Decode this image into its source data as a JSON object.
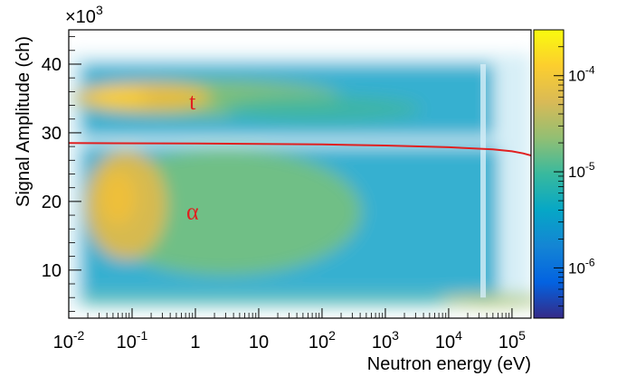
{
  "chart_data": {
    "type": "heatmap",
    "title": "",
    "xlabel": "Neutron energy (eV)",
    "ylabel": "Signal Amplitude (ch)",
    "y_multiplier_label": "×10",
    "y_multiplier_exponent": "3",
    "x_scale": "log",
    "xlim": [
      0.01,
      200000
    ],
    "ylim": [
      3000,
      45000
    ],
    "x_ticks": [
      {
        "value": 0.01,
        "base": "10",
        "exp": "-2"
      },
      {
        "value": 0.1,
        "base": "10",
        "exp": "-1"
      },
      {
        "value": 1,
        "base": "1",
        "exp": ""
      },
      {
        "value": 10,
        "base": "10",
        "exp": ""
      },
      {
        "value": 100,
        "base": "10",
        "exp": "2"
      },
      {
        "value": 1000,
        "base": "10",
        "exp": "3"
      },
      {
        "value": 10000,
        "base": "10",
        "exp": "4"
      },
      {
        "value": 100000,
        "base": "10",
        "exp": "5"
      }
    ],
    "y_ticks": [
      {
        "value": 10000,
        "label": "10"
      },
      {
        "value": 20000,
        "label": "20"
      },
      {
        "value": 30000,
        "label": "30"
      },
      {
        "value": 40000,
        "label": "40"
      }
    ],
    "colorbar": {
      "scale": "log",
      "range": [
        3e-07,
        0.0003
      ],
      "ticks": [
        {
          "value": 1e-06,
          "base": "10",
          "exp": "-6"
        },
        {
          "value": 1e-05,
          "base": "10",
          "exp": "-5"
        },
        {
          "value": 0.0001,
          "base": "10",
          "exp": "-4"
        }
      ],
      "colors": [
        "#352a87",
        "#0363e1",
        "#1485d4",
        "#06a7c6",
        "#38b99e",
        "#92bf73",
        "#d9ba56",
        "#fcce2e",
        "#f9fb0e"
      ]
    },
    "bands": [
      {
        "label": "t",
        "y_center": 35000,
        "y_halfwidth": 5000,
        "peak_x": 0.07
      },
      {
        "label": "α",
        "y_center": 19000,
        "y_halfwidth": 8500,
        "peak_x": 0.07
      },
      {
        "label": "",
        "y_center": 5700,
        "y_halfwidth": 700,
        "peak_x": 0.07
      }
    ],
    "threshold_line": {
      "color": "#e02020",
      "points": [
        [
          0.01,
          28500
        ],
        [
          1,
          28450
        ],
        [
          100,
          28300
        ],
        [
          1000,
          28150
        ],
        [
          10000,
          27900
        ],
        [
          50000,
          27600
        ],
        [
          100000,
          27300
        ],
        [
          150000,
          27000
        ],
        [
          200000,
          26700
        ]
      ]
    },
    "annotations": [
      {
        "text": "t",
        "x": 0.9,
        "y": 34500
      },
      {
        "text": "α",
        "x": 0.9,
        "y": 18500
      }
    ],
    "grid": false,
    "legend": "none"
  }
}
